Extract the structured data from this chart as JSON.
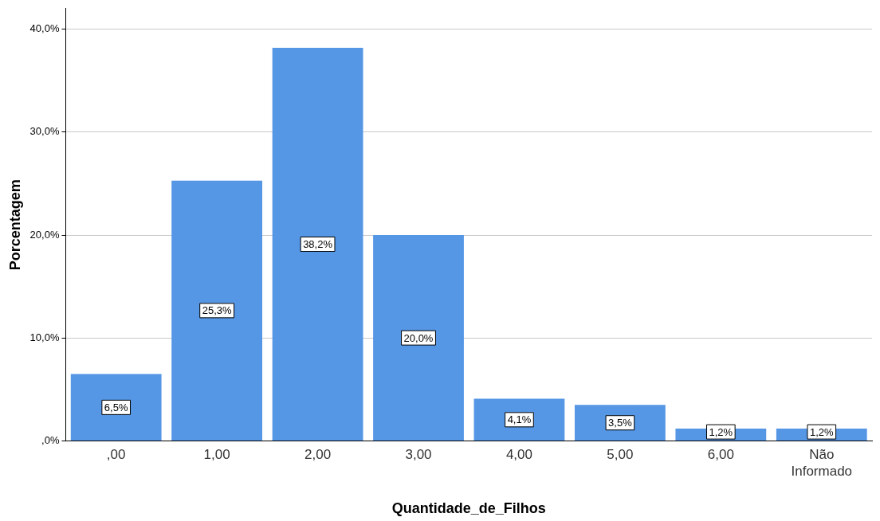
{
  "chart_data": {
    "type": "bar",
    "xlabel": "Quantidade_de_Filhos",
    "ylabel": "Porcentagem",
    "categories": [
      ",00",
      "1,00",
      "2,00",
      "3,00",
      "4,00",
      "5,00",
      "6,00",
      "Não Informado"
    ],
    "values": [
      6.5,
      25.3,
      38.2,
      20.0,
      4.1,
      3.5,
      1.2,
      1.2
    ],
    "value_labels": [
      "6,5%",
      "25,3%",
      "38,2%",
      "20,0%",
      "4,1%",
      "3,5%",
      "1,2%",
      "1,2%"
    ],
    "color": "#5596e5",
    "ylim": [
      0,
      42
    ],
    "yticks": [
      {
        "value": 0,
        "label": ",0%"
      },
      {
        "value": 10,
        "label": "10,0%"
      },
      {
        "value": 20,
        "label": "20,0%"
      },
      {
        "value": 30,
        "label": "30,0%"
      },
      {
        "value": 40,
        "label": "40,0%"
      }
    ],
    "grid": "y",
    "legend": false
  }
}
